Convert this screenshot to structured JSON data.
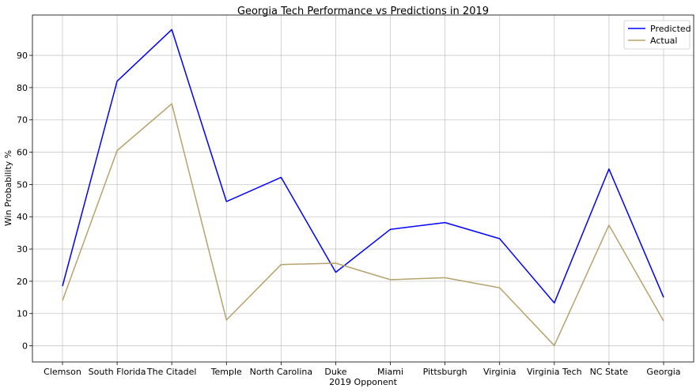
{
  "chart_data": {
    "type": "line",
    "title": "Georgia Tech Performance vs Predictions in 2019",
    "xlabel": "2019 Opponent",
    "ylabel": "Win Probability %",
    "categories": [
      "Clemson",
      "South Florida",
      "The Citadel",
      "Temple",
      "North Carolina",
      "Duke",
      "Miami",
      "Pittsburgh",
      "Virginia",
      "Virginia Tech",
      "NC State",
      "Georgia"
    ],
    "series": [
      {
        "name": "Predicted",
        "color": "#0000ff",
        "values": [
          18.5,
          82,
          98,
          44.7,
          52.2,
          22.8,
          36.1,
          38.2,
          33.2,
          13.3,
          54.8,
          15
        ]
      },
      {
        "name": "Actual",
        "color": "#b5a36c",
        "values": [
          14,
          60.5,
          75,
          8,
          25.2,
          25.6,
          20.5,
          21.1,
          18,
          0.1,
          37.4,
          7.7
        ]
      }
    ],
    "yticks": [
      0,
      10,
      20,
      30,
      40,
      50,
      60,
      70,
      80,
      90
    ],
    "ylim": [
      -5,
      102.5
    ],
    "grid": true,
    "legend_position": "top-right"
  }
}
